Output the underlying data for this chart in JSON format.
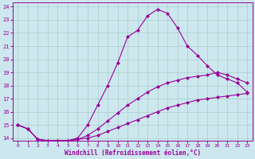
{
  "xlabel": "Windchill (Refroidissement éolien,°C)",
  "bg_color": "#cce8ee",
  "grid_color": "#aacccc",
  "line_color": "#990099",
  "xlim": [
    -0.5,
    23.5
  ],
  "ylim": [
    13.8,
    24.3
  ],
  "yticks": [
    14,
    15,
    16,
    17,
    18,
    19,
    20,
    21,
    22,
    23,
    24
  ],
  "xticks": [
    0,
    1,
    2,
    3,
    4,
    5,
    6,
    7,
    8,
    9,
    10,
    11,
    12,
    13,
    14,
    15,
    16,
    17,
    18,
    19,
    20,
    21,
    22,
    23
  ],
  "line1_x": [
    0,
    1,
    2,
    3,
    4,
    5,
    6,
    7,
    8,
    9,
    10,
    11,
    12,
    13,
    14,
    15,
    16,
    17,
    18,
    19,
    20,
    21,
    22,
    23
  ],
  "line1_y": [
    15.0,
    14.7,
    13.9,
    13.8,
    13.8,
    13.8,
    13.9,
    14.0,
    14.2,
    14.5,
    14.8,
    15.1,
    15.4,
    15.7,
    16.0,
    16.3,
    16.5,
    16.7,
    16.9,
    17.0,
    17.1,
    17.2,
    17.3,
    17.4
  ],
  "line2_x": [
    0,
    1,
    2,
    3,
    4,
    5,
    6,
    7,
    8,
    9,
    10,
    11,
    12,
    13,
    14,
    15,
    16,
    17,
    18,
    19,
    20,
    21,
    22,
    23
  ],
  "line2_y": [
    15.0,
    14.7,
    13.9,
    13.8,
    13.8,
    13.8,
    13.9,
    14.2,
    14.7,
    15.3,
    15.9,
    16.5,
    17.0,
    17.5,
    17.9,
    18.2,
    18.4,
    18.6,
    18.7,
    18.8,
    19.0,
    18.8,
    18.5,
    18.2
  ],
  "line3_x": [
    0,
    1,
    2,
    3,
    4,
    5,
    6,
    7,
    8,
    9,
    10,
    11,
    12,
    13,
    14,
    15,
    16,
    17,
    18,
    19,
    20,
    21,
    22,
    23
  ],
  "line3_y": [
    15.0,
    14.7,
    13.9,
    13.8,
    13.8,
    13.8,
    14.0,
    15.0,
    16.5,
    18.0,
    19.7,
    21.7,
    22.2,
    23.3,
    23.8,
    23.5,
    22.4,
    21.0,
    20.3,
    19.5,
    18.8,
    18.5,
    18.2,
    17.5
  ]
}
